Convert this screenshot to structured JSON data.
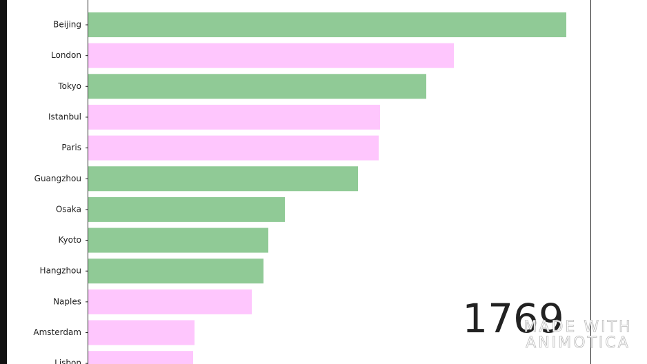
{
  "chart_data": {
    "type": "barh",
    "categories": [
      "Beijing",
      "London",
      "Tokyo",
      "Istanbul",
      "Paris",
      "Guangzhou",
      "Osaka",
      "Kyoto",
      "Hangzhou",
      "Naples",
      "Amsterdam",
      "Lisbon"
    ],
    "values": [
      693,
      530,
      490,
      423,
      421,
      391,
      285,
      261,
      254,
      237,
      154,
      152
    ],
    "colors": [
      "#90ca96",
      "#fec6fd",
      "#90ca96",
      "#fec6fd",
      "#fec6fd",
      "#90ca96",
      "#90ca96",
      "#90ca96",
      "#90ca96",
      "#fec6fd",
      "#fec6fd",
      "#fec6fd"
    ],
    "xlim": [
      0,
      728
    ],
    "year": "1769",
    "watermark": [
      "MADE WITH",
      "ANIMOTICA"
    ]
  }
}
